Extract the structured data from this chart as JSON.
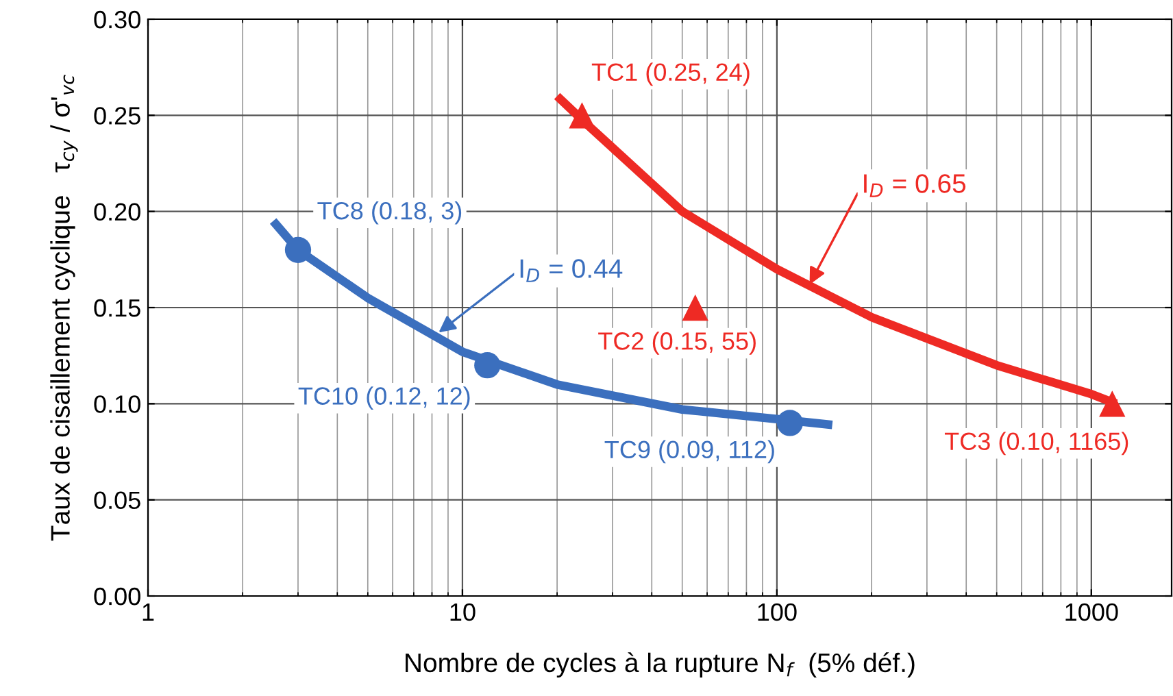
{
  "chart_data": {
    "type": "line",
    "xlabel": "Nombre de cycles à la rupture N$_{f}$  (5% déf.)",
    "ylabel": "Taux de cisaillement cyclique   τ$_{cy}$ / σ'$_{vc}$",
    "log": "x",
    "grid": true,
    "xlim": [
      1,
      1800
    ],
    "xticks": [
      1,
      10,
      100,
      1000
    ],
    "ylim": [
      0,
      0.3
    ],
    "yticks": [
      {
        "value": 0,
        "label": "0.00"
      },
      {
        "value": 0.05,
        "label": "0.05"
      },
      {
        "value": 0.1,
        "label": "0.10"
      },
      {
        "value": 0.15,
        "label": "0.15"
      },
      {
        "value": 0.2,
        "label": "0.20"
      },
      {
        "value": 0.25,
        "label": "0.25"
      },
      {
        "value": 0.3,
        "label": "0.30"
      }
    ],
    "series": [
      {
        "color": "#3b6fbe",
        "x": [
          2.5,
          3,
          5,
          10,
          20,
          50,
          100,
          150
        ],
        "values": [
          0.195,
          0.18,
          0.155,
          0.127,
          0.11,
          0.097,
          0.092,
          0.089
        ]
      },
      {
        "type": "scatter",
        "marker": "circle",
        "color": "#3b6fbe",
        "x": [
          3,
          12,
          110
        ],
        "values": [
          0.18,
          0.12,
          0.09
        ]
      },
      {
        "color": "#ee2a24",
        "x": [
          20,
          25,
          50,
          100,
          200,
          500,
          1000,
          1200
        ],
        "values": [
          0.26,
          0.245,
          0.2,
          0.17,
          0.145,
          0.12,
          0.105,
          0.1
        ]
      },
      {
        "type": "scatter",
        "marker": "triangle",
        "color": "#ee2a24",
        "x": [
          24,
          55,
          1165
        ],
        "values": [
          0.25,
          0.15,
          0.1
        ]
      }
    ],
    "annotations": [
      {
        "text": "TC1 (0.25, 24)",
        "x": 24,
        "y": 0.25
      },
      {
        "text": "TC2 (0.15, 55)",
        "x": 55,
        "y": 0.15
      },
      {
        "text": "TC3 (0.10, 1165)",
        "x": 1165,
        "y": 0.1
      },
      {
        "text": "TC8 (0.18, 3)",
        "x": 3,
        "y": 0.18
      },
      {
        "text": "TC10 (0.12, 12)",
        "x": 12,
        "y": 0.12
      },
      {
        "text": "TC9 (0.09, 112)",
        "x": 110,
        "y": 0.09
      },
      {
        "text": "I$_{D}$ = 0.44",
        "x": 8.4,
        "y": 0.137
      },
      {
        "text": "I$_{D}$ = 0.65",
        "x": 127,
        "y": 0.162
      }
    ]
  }
}
